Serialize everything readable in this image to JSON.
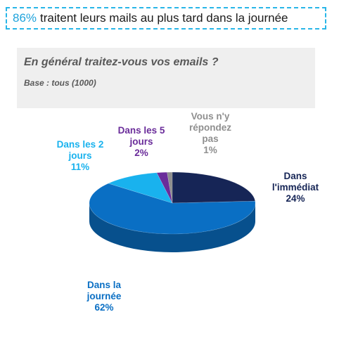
{
  "headline": {
    "accent": "86%",
    "text": "traitent leurs mails au plus tard dans la journée"
  },
  "question": {
    "title": "En général traitez-vous vos emails ?",
    "base": "Base : tous (1000)"
  },
  "colors": {
    "immediat": "#162556",
    "journee": "#0a6fc4",
    "deux_jours": "#19b2ee",
    "cinq_jours": "#6a2c9a",
    "repondez_pas": "#8f8f8f",
    "accent": "#1fa3dc",
    "border": "#29b6e8"
  },
  "chart_data": {
    "type": "pie",
    "style": "3d",
    "series": [
      {
        "name": "Dans l'immédiat",
        "label_lines": [
          "Dans",
          "l'immédiat",
          "24%"
        ],
        "value": 24,
        "color": "#162556"
      },
      {
        "name": "Dans la journée",
        "label_lines": [
          "Dans la",
          "journée",
          "62%"
        ],
        "value": 62,
        "color": "#0a6fc4"
      },
      {
        "name": "Dans les 2 jours",
        "label_lines": [
          "Dans les 2",
          "jours",
          "11%"
        ],
        "value": 11,
        "color": "#19b2ee"
      },
      {
        "name": "Dans les 5 jours",
        "label_lines": [
          "Dans les 5",
          "jours",
          "2%"
        ],
        "value": 2,
        "color": "#6a2c9a"
      },
      {
        "name": "Vous n'y répondez pas",
        "label_lines": [
          "Vous n'y",
          "répondez",
          "pas",
          "1%"
        ],
        "value": 1,
        "color": "#8f8f8f"
      }
    ]
  }
}
